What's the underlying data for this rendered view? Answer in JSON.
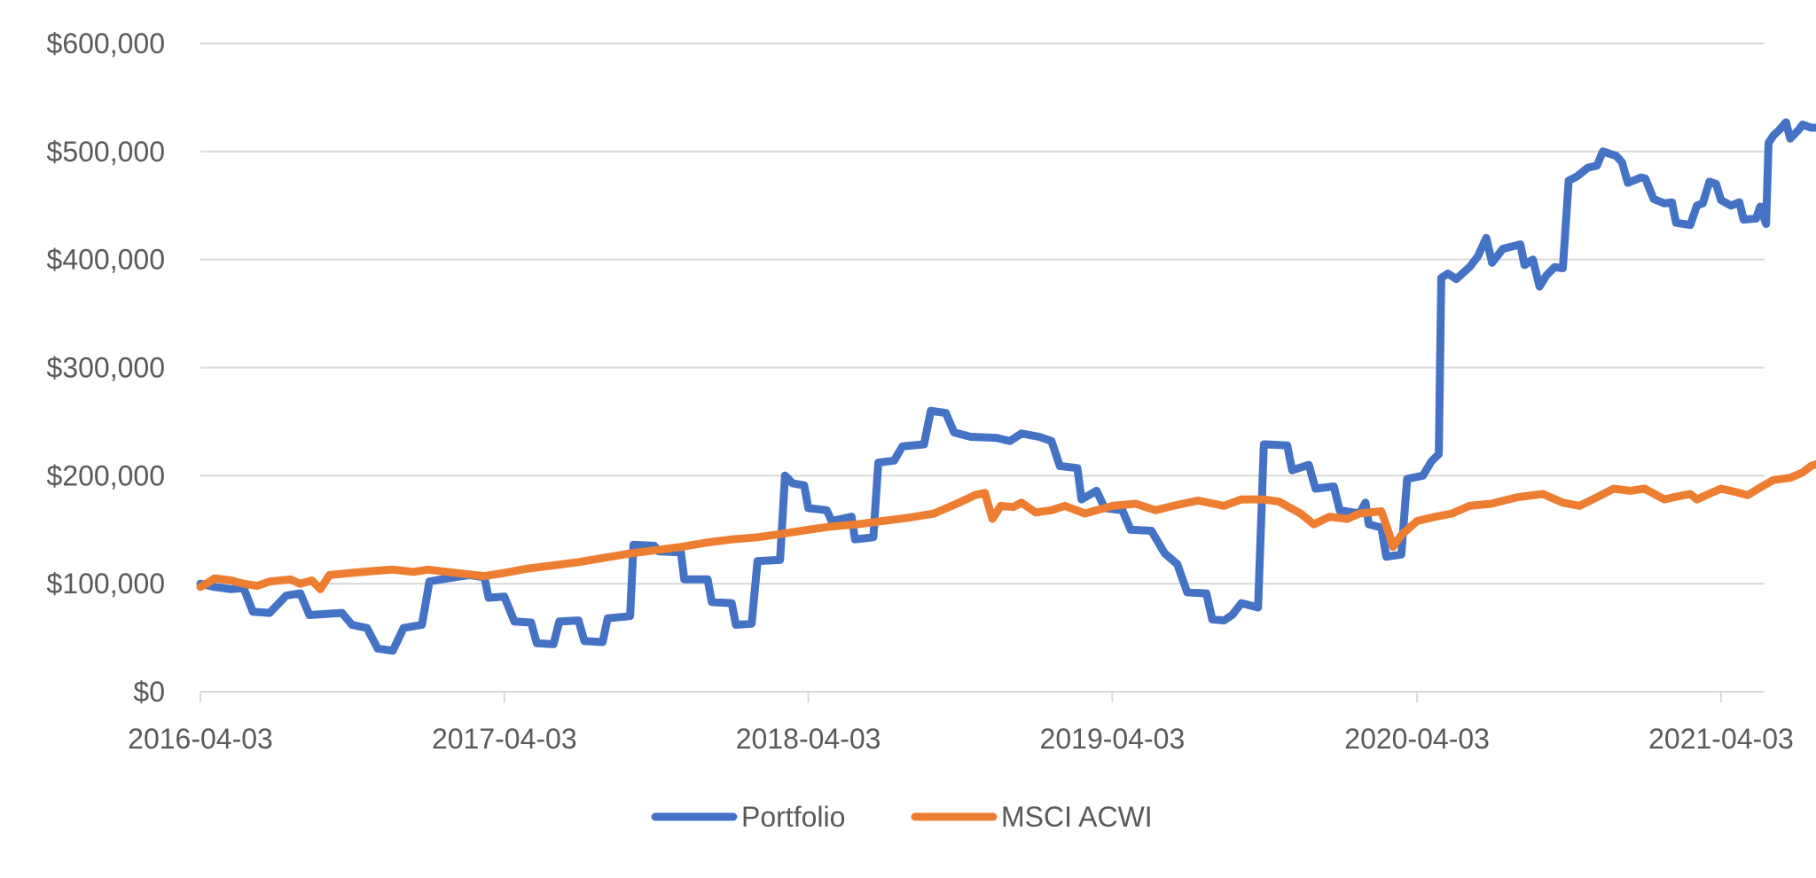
{
  "chart_data": {
    "type": "line",
    "title": "",
    "xlabel": "",
    "ylabel": "",
    "x_range": [
      "2016-04-03",
      "2021-06-01"
    ],
    "x_ticks": [
      "2016-04-03",
      "2017-04-03",
      "2018-04-03",
      "2019-04-03",
      "2020-04-03",
      "2021-04-03"
    ],
    "ylim": [
      0,
      600000
    ],
    "y_ticks": [
      0,
      100000,
      200000,
      300000,
      400000,
      500000,
      600000
    ],
    "y_tick_labels": [
      "$0",
      "$100,000",
      "$200,000",
      "$300,000",
      "$400,000",
      "$500,000",
      "$600,000"
    ],
    "grid": true,
    "legend_position": "bottom",
    "series": [
      {
        "name": "Portfolio",
        "color": "#4472c4",
        "points": [
          [
            "2016-04-03",
            100000
          ],
          [
            "2016-04-20",
            97000
          ],
          [
            "2016-05-10",
            95000
          ],
          [
            "2016-05-25",
            96000
          ],
          [
            "2016-06-05",
            74000
          ],
          [
            "2016-06-25",
            73000
          ],
          [
            "2016-07-15",
            89000
          ],
          [
            "2016-08-01",
            91000
          ],
          [
            "2016-08-12",
            71000
          ],
          [
            "2016-09-01",
            72000
          ],
          [
            "2016-09-20",
            73000
          ],
          [
            "2016-10-02",
            62000
          ],
          [
            "2016-10-20",
            59000
          ],
          [
            "2016-11-02",
            40000
          ],
          [
            "2016-11-20",
            38000
          ],
          [
            "2016-12-03",
            59000
          ],
          [
            "2016-12-25",
            62000
          ],
          [
            "2017-01-03",
            102000
          ],
          [
            "2017-01-25",
            105000
          ],
          [
            "2017-02-20",
            108000
          ],
          [
            "2017-03-10",
            106000
          ],
          [
            "2017-03-15",
            87000
          ],
          [
            "2017-04-03",
            88000
          ],
          [
            "2017-04-15",
            65000
          ],
          [
            "2017-05-05",
            64000
          ],
          [
            "2017-05-12",
            45000
          ],
          [
            "2017-06-01",
            44000
          ],
          [
            "2017-06-08",
            65000
          ],
          [
            "2017-07-01",
            66000
          ],
          [
            "2017-07-08",
            47000
          ],
          [
            "2017-07-30",
            46000
          ],
          [
            "2017-08-05",
            68000
          ],
          [
            "2017-09-01",
            70000
          ],
          [
            "2017-09-05",
            136000
          ],
          [
            "2017-09-30",
            135000
          ],
          [
            "2017-10-05",
            130000
          ],
          [
            "2017-11-01",
            129000
          ],
          [
            "2017-11-05",
            104000
          ],
          [
            "2017-12-03",
            104000
          ],
          [
            "2017-12-08",
            83000
          ],
          [
            "2018-01-01",
            82000
          ],
          [
            "2018-01-06",
            62000
          ],
          [
            "2018-01-25",
            63000
          ],
          [
            "2018-02-01",
            121000
          ],
          [
            "2018-02-28",
            122000
          ],
          [
            "2018-03-06",
            200000
          ],
          [
            "2018-03-15",
            193000
          ],
          [
            "2018-03-29",
            191000
          ],
          [
            "2018-04-03",
            170000
          ],
          [
            "2018-04-25",
            168000
          ],
          [
            "2018-05-01",
            158000
          ],
          [
            "2018-05-25",
            162000
          ],
          [
            "2018-05-29",
            141000
          ],
          [
            "2018-06-20",
            143000
          ],
          [
            "2018-06-26",
            212000
          ],
          [
            "2018-07-15",
            214000
          ],
          [
            "2018-07-25",
            227000
          ],
          [
            "2018-08-20",
            229000
          ],
          [
            "2018-08-28",
            260000
          ],
          [
            "2018-09-15",
            258000
          ],
          [
            "2018-09-25",
            240000
          ],
          [
            "2018-10-15",
            236000
          ],
          [
            "2018-11-15",
            235000
          ],
          [
            "2018-12-01",
            232000
          ],
          [
            "2018-12-15",
            239000
          ],
          [
            "2019-01-05",
            236000
          ],
          [
            "2019-01-20",
            232000
          ],
          [
            "2019-01-30",
            209000
          ],
          [
            "2019-02-20",
            207000
          ],
          [
            "2019-02-25",
            178000
          ],
          [
            "2019-03-15",
            186000
          ],
          [
            "2019-03-25",
            170000
          ],
          [
            "2019-04-15",
            168000
          ],
          [
            "2019-04-25",
            150000
          ],
          [
            "2019-05-20",
            149000
          ],
          [
            "2019-06-05",
            128000
          ],
          [
            "2019-06-20",
            118000
          ],
          [
            "2019-07-02",
            92000
          ],
          [
            "2019-07-25",
            91000
          ],
          [
            "2019-08-01",
            67000
          ],
          [
            "2019-08-15",
            66000
          ],
          [
            "2019-08-25",
            71000
          ],
          [
            "2019-09-05",
            82000
          ],
          [
            "2019-09-25",
            78000
          ],
          [
            "2019-10-02",
            229000
          ],
          [
            "2019-10-30",
            228000
          ],
          [
            "2019-11-05",
            205000
          ],
          [
            "2019-11-25",
            210000
          ],
          [
            "2019-12-03",
            188000
          ],
          [
            "2019-12-25",
            190000
          ],
          [
            "2020-01-01",
            168000
          ],
          [
            "2020-01-25",
            165000
          ],
          [
            "2020-02-01",
            175000
          ],
          [
            "2020-02-05",
            155000
          ],
          [
            "2020-02-20",
            152000
          ],
          [
            "2020-02-26",
            125000
          ],
          [
            "2020-03-15",
            127000
          ],
          [
            "2020-03-22",
            197000
          ],
          [
            "2020-04-10",
            200000
          ],
          [
            "2020-04-20",
            213000
          ],
          [
            "2020-04-29",
            220000
          ],
          [
            "2020-05-02",
            383000
          ],
          [
            "2020-05-10",
            387000
          ],
          [
            "2020-05-20",
            382000
          ],
          [
            "2020-06-05",
            393000
          ],
          [
            "2020-06-15",
            403000
          ],
          [
            "2020-06-25",
            420000
          ],
          [
            "2020-07-02",
            397000
          ],
          [
            "2020-07-15",
            410000
          ],
          [
            "2020-08-05",
            414000
          ],
          [
            "2020-08-10",
            395000
          ],
          [
            "2020-08-20",
            400000
          ],
          [
            "2020-08-28",
            375000
          ],
          [
            "2020-09-05",
            385000
          ],
          [
            "2020-09-15",
            393000
          ],
          [
            "2020-09-25",
            392000
          ],
          [
            "2020-10-02",
            473000
          ],
          [
            "2020-10-12",
            477000
          ],
          [
            "2020-10-25",
            485000
          ],
          [
            "2020-11-05",
            487000
          ],
          [
            "2020-11-12",
            500000
          ],
          [
            "2020-11-28",
            496000
          ],
          [
            "2020-12-05",
            490000
          ],
          [
            "2020-12-12",
            471000
          ],
          [
            "2020-12-28",
            476000
          ],
          [
            "2021-01-02",
            475000
          ],
          [
            "2021-01-12",
            456000
          ],
          [
            "2021-01-25",
            452000
          ],
          [
            "2021-02-03",
            453000
          ],
          [
            "2021-02-08",
            434000
          ],
          [
            "2021-02-25",
            432000
          ],
          [
            "2021-03-05",
            450000
          ],
          [
            "2021-03-12",
            452000
          ],
          [
            "2021-03-20",
            472000
          ],
          [
            "2021-03-28",
            470000
          ],
          [
            "2021-04-03",
            455000
          ],
          [
            "2021-04-15",
            450000
          ],
          [
            "2021-04-25",
            453000
          ],
          [
            "2021-04-30",
            437000
          ],
          [
            "2021-05-15",
            438000
          ],
          [
            "2021-05-20",
            449000
          ],
          [
            "2021-05-27",
            433000
          ],
          [
            "2021-05-30",
            508000
          ],
          [
            "2021-06-05",
            515000
          ],
          [
            "2021-06-12",
            520000
          ],
          [
            "2021-06-20",
            527000
          ],
          [
            "2021-06-25",
            512000
          ],
          [
            "2021-07-05",
            520000
          ],
          [
            "2021-07-10",
            525000
          ],
          [
            "2021-07-20",
            522000
          ],
          [
            "2021-07-28",
            522000
          ]
        ]
      },
      {
        "name": "MSCI ACWI",
        "color": "#ed7d31",
        "points": [
          [
            "2016-04-03",
            97000
          ],
          [
            "2016-04-10",
            100000
          ],
          [
            "2016-04-20",
            105000
          ],
          [
            "2016-05-10",
            103000
          ],
          [
            "2016-05-25",
            100000
          ],
          [
            "2016-06-10",
            98000
          ],
          [
            "2016-06-25",
            102000
          ],
          [
            "2016-07-20",
            104000
          ],
          [
            "2016-08-01",
            100000
          ],
          [
            "2016-08-15",
            103000
          ],
          [
            "2016-08-25",
            95000
          ],
          [
            "2016-09-05",
            108000
          ],
          [
            "2016-10-01",
            110000
          ],
          [
            "2016-11-01",
            112000
          ],
          [
            "2016-11-20",
            113000
          ],
          [
            "2016-12-15",
            111000
          ],
          [
            "2017-01-01",
            113000
          ],
          [
            "2017-02-15",
            109000
          ],
          [
            "2017-03-10",
            107000
          ],
          [
            "2017-04-03",
            110000
          ],
          [
            "2017-05-01",
            114000
          ],
          [
            "2017-06-01",
            117000
          ],
          [
            "2017-07-01",
            120000
          ],
          [
            "2017-08-01",
            124000
          ],
          [
            "2017-09-01",
            128000
          ],
          [
            "2017-10-01",
            131000
          ],
          [
            "2017-11-01",
            134000
          ],
          [
            "2017-12-01",
            138000
          ],
          [
            "2018-01-01",
            141000
          ],
          [
            "2018-02-01",
            143000
          ],
          [
            "2018-03-01",
            146000
          ],
          [
            "2018-04-03",
            150000
          ],
          [
            "2018-05-01",
            153000
          ],
          [
            "2018-06-01",
            155000
          ],
          [
            "2018-07-01",
            158000
          ],
          [
            "2018-08-01",
            161000
          ],
          [
            "2018-09-01",
            165000
          ],
          [
            "2018-10-01",
            175000
          ],
          [
            "2018-10-20",
            182000
          ],
          [
            "2018-11-01",
            184000
          ],
          [
            "2018-11-10",
            160000
          ],
          [
            "2018-11-20",
            172000
          ],
          [
            "2018-12-05",
            171000
          ],
          [
            "2018-12-15",
            175000
          ],
          [
            "2019-01-01",
            166000
          ],
          [
            "2019-01-20",
            168000
          ],
          [
            "2019-02-05",
            172000
          ],
          [
            "2019-03-01",
            165000
          ],
          [
            "2019-04-03",
            172000
          ],
          [
            "2019-05-01",
            174000
          ],
          [
            "2019-05-25",
            168000
          ],
          [
            "2019-06-15",
            172000
          ],
          [
            "2019-07-15",
            177000
          ],
          [
            "2019-08-15",
            172000
          ],
          [
            "2019-09-05",
            178000
          ],
          [
            "2019-10-01",
            178000
          ],
          [
            "2019-10-20",
            176000
          ],
          [
            "2019-11-15",
            165000
          ],
          [
            "2019-12-01",
            155000
          ],
          [
            "2019-12-20",
            162000
          ],
          [
            "2020-01-10",
            160000
          ],
          [
            "2020-01-25",
            165000
          ],
          [
            "2020-02-20",
            167000
          ],
          [
            "2020-03-01",
            145000
          ],
          [
            "2020-03-05",
            134000
          ],
          [
            "2020-03-15",
            145000
          ],
          [
            "2020-04-03",
            158000
          ],
          [
            "2020-04-25",
            162000
          ],
          [
            "2020-05-15",
            165000
          ],
          [
            "2020-06-05",
            172000
          ],
          [
            "2020-07-01",
            174000
          ],
          [
            "2020-08-01",
            180000
          ],
          [
            "2020-09-01",
            183000
          ],
          [
            "2020-09-25",
            175000
          ],
          [
            "2020-10-15",
            172000
          ],
          [
            "2020-11-05",
            180000
          ],
          [
            "2020-11-25",
            188000
          ],
          [
            "2020-12-15",
            186000
          ],
          [
            "2021-01-01",
            188000
          ],
          [
            "2021-01-25",
            178000
          ],
          [
            "2021-02-05",
            180000
          ],
          [
            "2021-02-25",
            183000
          ],
          [
            "2021-03-05",
            178000
          ],
          [
            "2021-03-25",
            185000
          ],
          [
            "2021-04-03",
            188000
          ],
          [
            "2021-04-20",
            185000
          ],
          [
            "2021-05-05",
            182000
          ],
          [
            "2021-05-20",
            189000
          ],
          [
            "2021-06-05",
            196000
          ],
          [
            "2021-06-25",
            198000
          ],
          [
            "2021-07-10",
            203000
          ],
          [
            "2021-07-20",
            209000
          ],
          [
            "2021-07-28",
            211000
          ]
        ]
      }
    ]
  }
}
